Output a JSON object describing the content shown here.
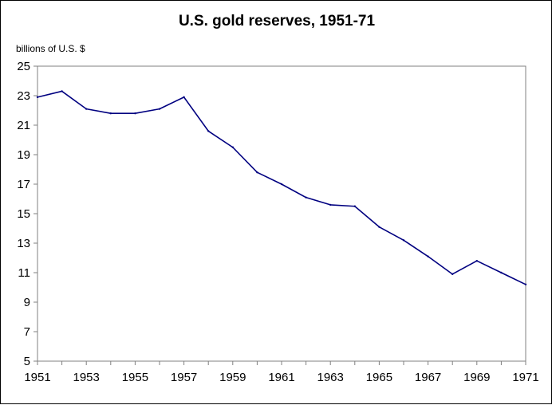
{
  "chart_data": {
    "type": "line",
    "title": "U.S. gold reserves, 1951-71",
    "ylabel": "billions of U.S. $",
    "xlabel": "",
    "x": [
      1951,
      1952,
      1953,
      1954,
      1955,
      1956,
      1957,
      1958,
      1959,
      1960,
      1961,
      1962,
      1963,
      1964,
      1965,
      1966,
      1967,
      1968,
      1969,
      1970,
      1971
    ],
    "series": [
      {
        "values": [
          22.9,
          23.3,
          22.1,
          21.8,
          21.8,
          22.1,
          22.9,
          20.6,
          19.5,
          17.8,
          17.0,
          16.1,
          15.6,
          15.5,
          14.1,
          13.2,
          12.1,
          10.9,
          11.8,
          11.0,
          10.2
        ]
      }
    ],
    "xlim": [
      1951,
      1971
    ],
    "ylim": [
      5,
      25
    ],
    "xticks": [
      "1951",
      "1953",
      "1955",
      "1957",
      "1959",
      "1961",
      "1963",
      "1965",
      "1967",
      "1969",
      "1971"
    ],
    "yticks": [
      "5",
      "7",
      "9",
      "11",
      "13",
      "15",
      "17",
      "19",
      "21",
      "23",
      "25"
    ],
    "grid": false,
    "legend": "none",
    "colors": {
      "line": "#000080",
      "axes": "#808080",
      "background": "#ffffff"
    }
  }
}
